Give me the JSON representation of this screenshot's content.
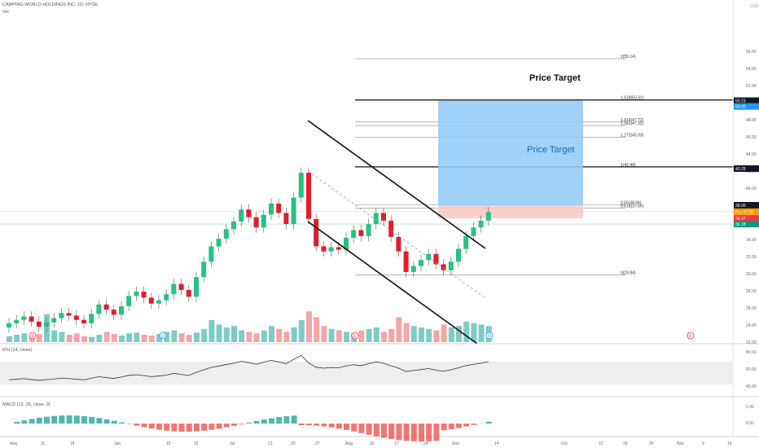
{
  "header": {
    "symbol_line": "CAMPING WORLD HOLDINGS INC, 1D, NYSE",
    "vol_label": "Vol",
    "currency": "USD"
  },
  "annotations": {
    "target_upper": "Price Target",
    "target_lower": "Price Target"
  },
  "fib_levels": [
    {
      "label": "2(55.14)",
      "price": 55.14
    },
    {
      "label": "1.618(50.31)",
      "price": 50.31
    },
    {
      "label": "1.414(47.73)",
      "price": 47.73
    },
    {
      "label": "1.382(47.32)",
      "price": 47.32
    },
    {
      "label": "1.272(45.93)",
      "price": 45.93
    },
    {
      "label": "1(42.49)",
      "price": 42.49
    },
    {
      "label": "0.65(38.06)",
      "price": 38.06
    },
    {
      "label": "0.618(37.66)",
      "price": 37.66
    },
    {
      "label": "0(29.84)",
      "price": 29.84
    }
  ],
  "price_axis": {
    "ticks": [
      "56.00",
      "54.00",
      "52.00",
      "50.00",
      "48.00",
      "46.00",
      "44.00",
      "42.00",
      "40.00",
      "38.00",
      "36.00",
      "34.00",
      "32.00",
      "30.00",
      "28.00",
      "26.00",
      "24.00",
      "22.00"
    ],
    "tags": [
      {
        "text": "50.23",
        "price": 50.23,
        "bg": "#131722",
        "fg": "#ffffff"
      },
      {
        "text": "50.00",
        "price": 49.55,
        "bg": "#2196f3",
        "fg": "#ffffff"
      },
      {
        "text": "42.29",
        "price": 42.29,
        "bg": "#131722",
        "fg": "#ffffff"
      },
      {
        "text": "38.00",
        "price": 38.0,
        "bg": "#131722",
        "fg": "#ffffff"
      },
      {
        "text": "Pre 37.25",
        "price": 37.25,
        "bg": "#ff9800",
        "fg": "#ffffff"
      },
      {
        "text": "36.47",
        "price": 36.47,
        "bg": "#f23645",
        "fg": "#ffffff"
      },
      {
        "text": "36.18",
        "price": 35.8,
        "bg": "#089981",
        "fg": "#ffffff"
      }
    ]
  },
  "rsi": {
    "label": "RSI (14, close)",
    "ticks": [
      "80.00",
      "60.00",
      "40.00"
    ]
  },
  "macd": {
    "label": "MACD (12, 26, close, 9)",
    "ticks": [
      "1.00",
      "0.00"
    ]
  },
  "time_axis": {
    "labels": [
      "May",
      "11",
      "18",
      "Jun",
      "15",
      "22",
      "Jul",
      "13",
      "20",
      "27",
      "Aug",
      "10",
      "17",
      "24",
      "Sep",
      "14",
      "Oct",
      "12",
      "19",
      "26",
      "Nov",
      "9",
      "16"
    ]
  },
  "events": [
    "E",
    "D",
    "E",
    "D",
    "E"
  ],
  "colors": {
    "up": "#26c281",
    "down": "#e01e2a",
    "target_box": "#90caf9",
    "stop_box": "#f8c8c8"
  },
  "chart_data": {
    "type": "candlestick",
    "candles_close_approx": [
      24.2,
      24.6,
      25.0,
      24.4,
      23.8,
      24.3,
      24.8,
      25.4,
      25.1,
      24.6,
      24.2,
      25.3,
      26.4,
      25.8,
      25.2,
      26.2,
      27.4,
      27.9,
      27.2,
      26.5,
      26.9,
      27.6,
      28.8,
      28.1,
      27.3,
      29.6,
      31.4,
      33.2,
      34.1,
      35.2,
      36.1,
      37.5,
      36.6,
      35.4,
      36.9,
      38.2,
      37.1,
      35.8,
      38.9,
      41.8,
      36.4,
      33.2,
      32.6,
      33.1,
      32.8,
      34.2,
      35.1,
      34.4,
      35.8,
      37.1,
      36.2,
      34.3,
      32.6,
      30.2,
      30.9,
      31.6,
      32.3,
      31.1,
      30.4,
      31.4,
      32.9,
      34.4,
      35.4,
      36.2,
      37.2
    ]
  }
}
